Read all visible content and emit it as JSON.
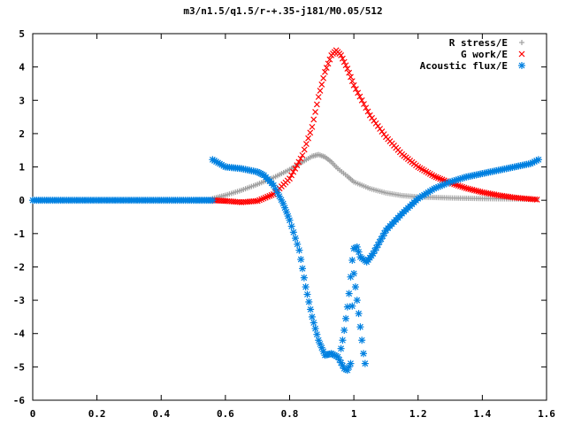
{
  "chart_data": {
    "type": "scatter",
    "title": "m3/n1.5/q1.5/r-+.35-j181/M0.05/512",
    "xlabel": "",
    "ylabel": "",
    "xlim": [
      0,
      1.6
    ],
    "ylim": [
      -6,
      5
    ],
    "x_ticks": [
      "0",
      "0.2",
      "0.4",
      "0.6",
      "0.8",
      "1",
      "1.2",
      "1.4",
      "1.6"
    ],
    "y_ticks": [
      "5",
      "4",
      "3",
      "2",
      "1",
      "0",
      "-1",
      "-2",
      "-3",
      "-4",
      "-5",
      "-6"
    ],
    "grid": false,
    "legend_position": "top-right",
    "series": [
      {
        "name": "R stress/E",
        "marker": "plus",
        "color": "#a0a0a0",
        "points": [
          [
            0.56,
            0.05
          ],
          [
            0.6,
            0.15
          ],
          [
            0.65,
            0.3
          ],
          [
            0.7,
            0.48
          ],
          [
            0.75,
            0.68
          ],
          [
            0.8,
            0.92
          ],
          [
            0.84,
            1.15
          ],
          [
            0.87,
            1.32
          ],
          [
            0.89,
            1.37
          ],
          [
            0.91,
            1.3
          ],
          [
            0.93,
            1.15
          ],
          [
            0.95,
            0.95
          ],
          [
            0.98,
            0.72
          ],
          [
            1.0,
            0.55
          ],
          [
            1.05,
            0.35
          ],
          [
            1.1,
            0.22
          ],
          [
            1.15,
            0.14
          ],
          [
            1.2,
            0.1
          ],
          [
            1.3,
            0.07
          ],
          [
            1.4,
            0.05
          ],
          [
            1.5,
            0.04
          ],
          [
            1.57,
            0.03
          ]
        ]
      },
      {
        "name": "G work/E",
        "marker": "cross",
        "color": "#ff0000",
        "points": [
          [
            0.56,
            0.0
          ],
          [
            0.6,
            -0.02
          ],
          [
            0.65,
            -0.06
          ],
          [
            0.7,
            -0.02
          ],
          [
            0.75,
            0.18
          ],
          [
            0.8,
            0.65
          ],
          [
            0.84,
            1.35
          ],
          [
            0.87,
            2.2
          ],
          [
            0.89,
            3.1
          ],
          [
            0.91,
            3.85
          ],
          [
            0.93,
            4.35
          ],
          [
            0.945,
            4.5
          ],
          [
            0.96,
            4.35
          ],
          [
            0.98,
            3.95
          ],
          [
            1.0,
            3.45
          ],
          [
            1.05,
            2.55
          ],
          [
            1.1,
            1.9
          ],
          [
            1.15,
            1.38
          ],
          [
            1.2,
            1.0
          ],
          [
            1.25,
            0.72
          ],
          [
            1.3,
            0.52
          ],
          [
            1.35,
            0.36
          ],
          [
            1.4,
            0.24
          ],
          [
            1.45,
            0.15
          ],
          [
            1.5,
            0.08
          ],
          [
            1.57,
            0.02
          ]
        ]
      },
      {
        "name": "Acoustic flux/E",
        "marker": "star",
        "color": "#0080e0",
        "points": [
          [
            0.0,
            0.0
          ],
          [
            0.1,
            0.0
          ],
          [
            0.2,
            0.0
          ],
          [
            0.3,
            0.0
          ],
          [
            0.4,
            0.0
          ],
          [
            0.5,
            0.0
          ],
          [
            0.56,
            0.0
          ],
          [
            0.56,
            1.22
          ],
          [
            0.6,
            1.0
          ],
          [
            0.65,
            0.95
          ],
          [
            0.7,
            0.85
          ],
          [
            0.72,
            0.75
          ],
          [
            0.75,
            0.45
          ],
          [
            0.78,
            -0.1
          ],
          [
            0.8,
            -0.6
          ],
          [
            0.83,
            -1.5
          ],
          [
            0.85,
            -2.6
          ],
          [
            0.87,
            -3.5
          ],
          [
            0.89,
            -4.2
          ],
          [
            0.91,
            -4.65
          ],
          [
            0.93,
            -4.6
          ],
          [
            0.95,
            -4.7
          ],
          [
            0.97,
            -5.05
          ],
          [
            0.98,
            -5.1
          ],
          [
            0.99,
            -4.9
          ],
          [
            1.0,
            -1.45
          ],
          [
            1.01,
            -1.4
          ],
          [
            1.02,
            -1.7
          ],
          [
            1.04,
            -1.85
          ],
          [
            1.06,
            -1.6
          ],
          [
            1.08,
            -1.25
          ],
          [
            1.1,
            -0.9
          ],
          [
            1.15,
            -0.4
          ],
          [
            1.2,
            0.05
          ],
          [
            1.25,
            0.35
          ],
          [
            1.3,
            0.55
          ],
          [
            1.35,
            0.7
          ],
          [
            1.4,
            0.8
          ],
          [
            1.45,
            0.9
          ],
          [
            1.5,
            1.0
          ],
          [
            1.55,
            1.1
          ],
          [
            1.575,
            1.22
          ]
        ]
      }
    ],
    "acoustic_vertical_points": [
      [
        0.96,
        -4.45
      ],
      [
        0.965,
        -4.2
      ],
      [
        0.97,
        -3.9
      ],
      [
        0.975,
        -3.55
      ],
      [
        0.98,
        -3.2
      ],
      [
        0.985,
        -2.8
      ],
      [
        0.99,
        -2.3
      ],
      [
        0.995,
        -1.8
      ],
      [
        1.0,
        -2.2
      ],
      [
        1.005,
        -2.6
      ],
      [
        1.01,
        -3.0
      ],
      [
        1.015,
        -3.4
      ],
      [
        1.02,
        -3.8
      ],
      [
        1.025,
        -4.2
      ],
      [
        1.03,
        -4.6
      ],
      [
        1.035,
        -4.9
      ]
    ]
  }
}
